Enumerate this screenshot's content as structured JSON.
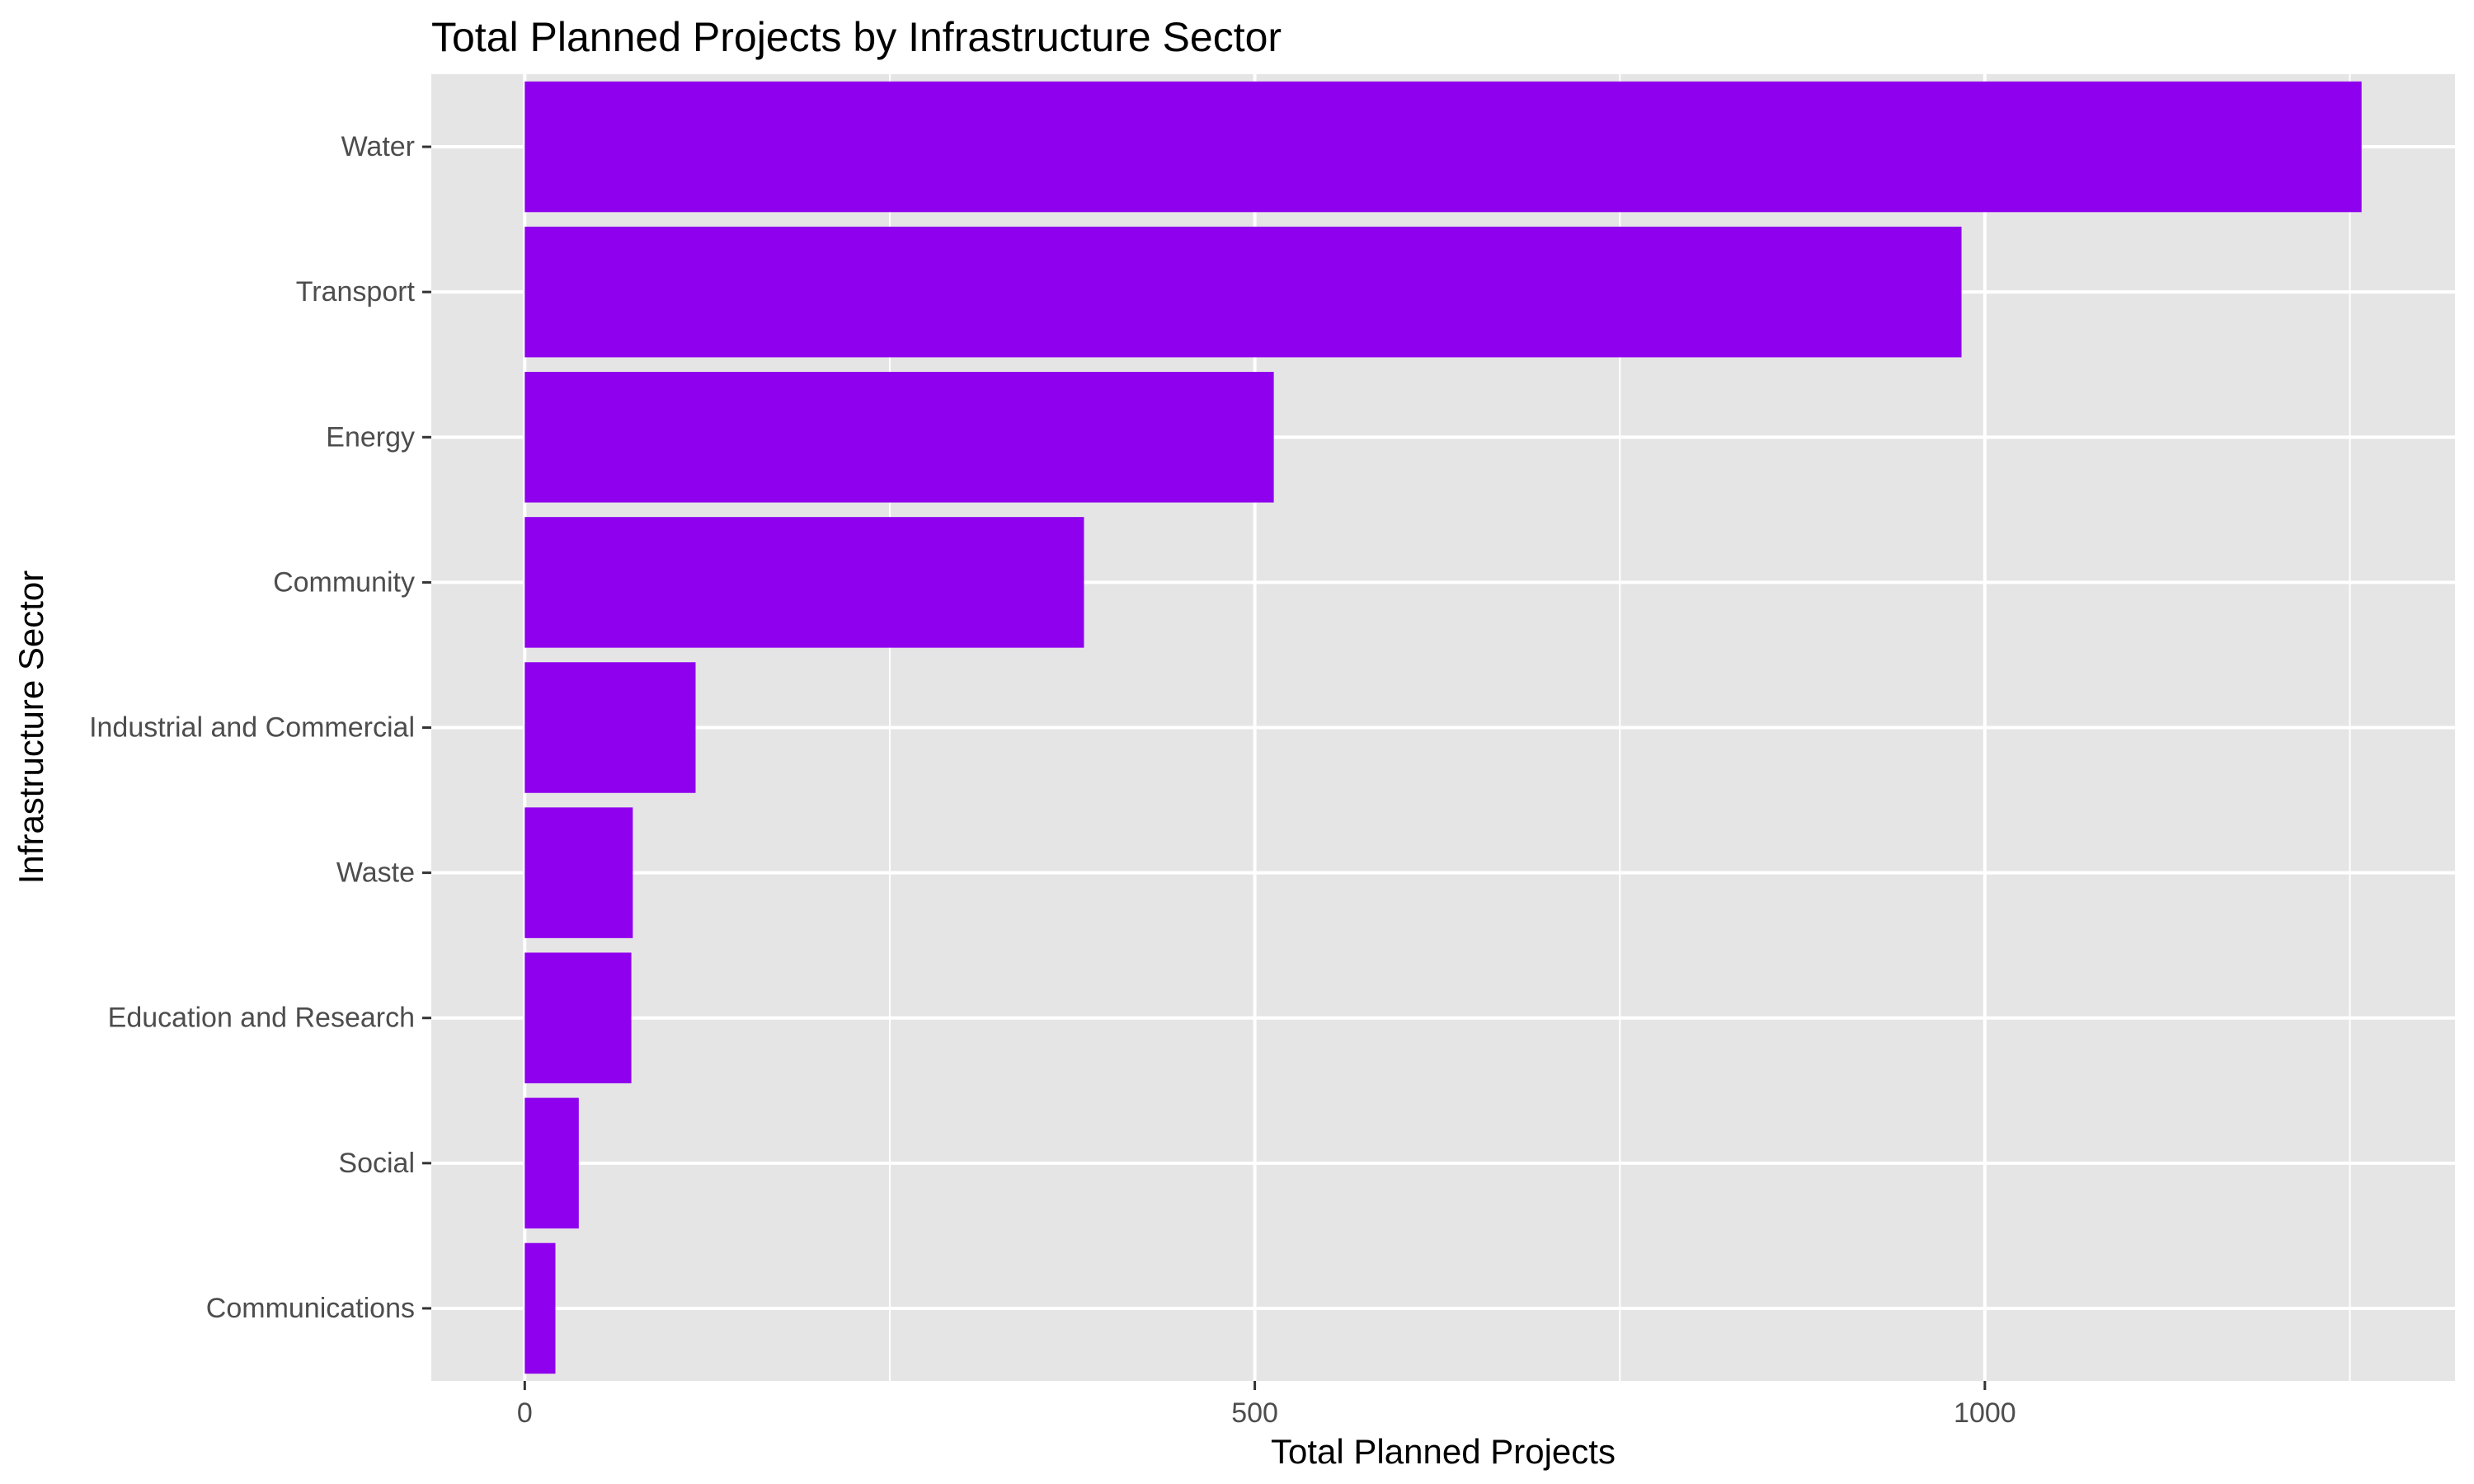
{
  "chart_data": {
    "type": "bar",
    "orientation": "horizontal",
    "title": "Total Planned Projects by Infrastructure Sector",
    "xlabel": "Total Planned Projects",
    "ylabel": "Infrastructure Sector",
    "categories": [
      "Water",
      "Transport",
      "Energy",
      "Community",
      "Industrial and Commercial",
      "Waste",
      "Education and Research",
      "Social",
      "Communications"
    ],
    "values": [
      1258,
      984,
      513,
      383,
      117,
      74,
      73,
      37,
      21
    ],
    "xlim": [
      -64,
      1322
    ],
    "x_ticks": [
      0,
      500,
      1000
    ],
    "x_tick_labels": [
      "0",
      "500",
      "1000"
    ],
    "grid": true,
    "legend": "none",
    "colors": {
      "bar": "#8F00EE",
      "panel_background": "#E5E5E5",
      "grid": "#FFFFFF",
      "tick": "#333333"
    }
  }
}
